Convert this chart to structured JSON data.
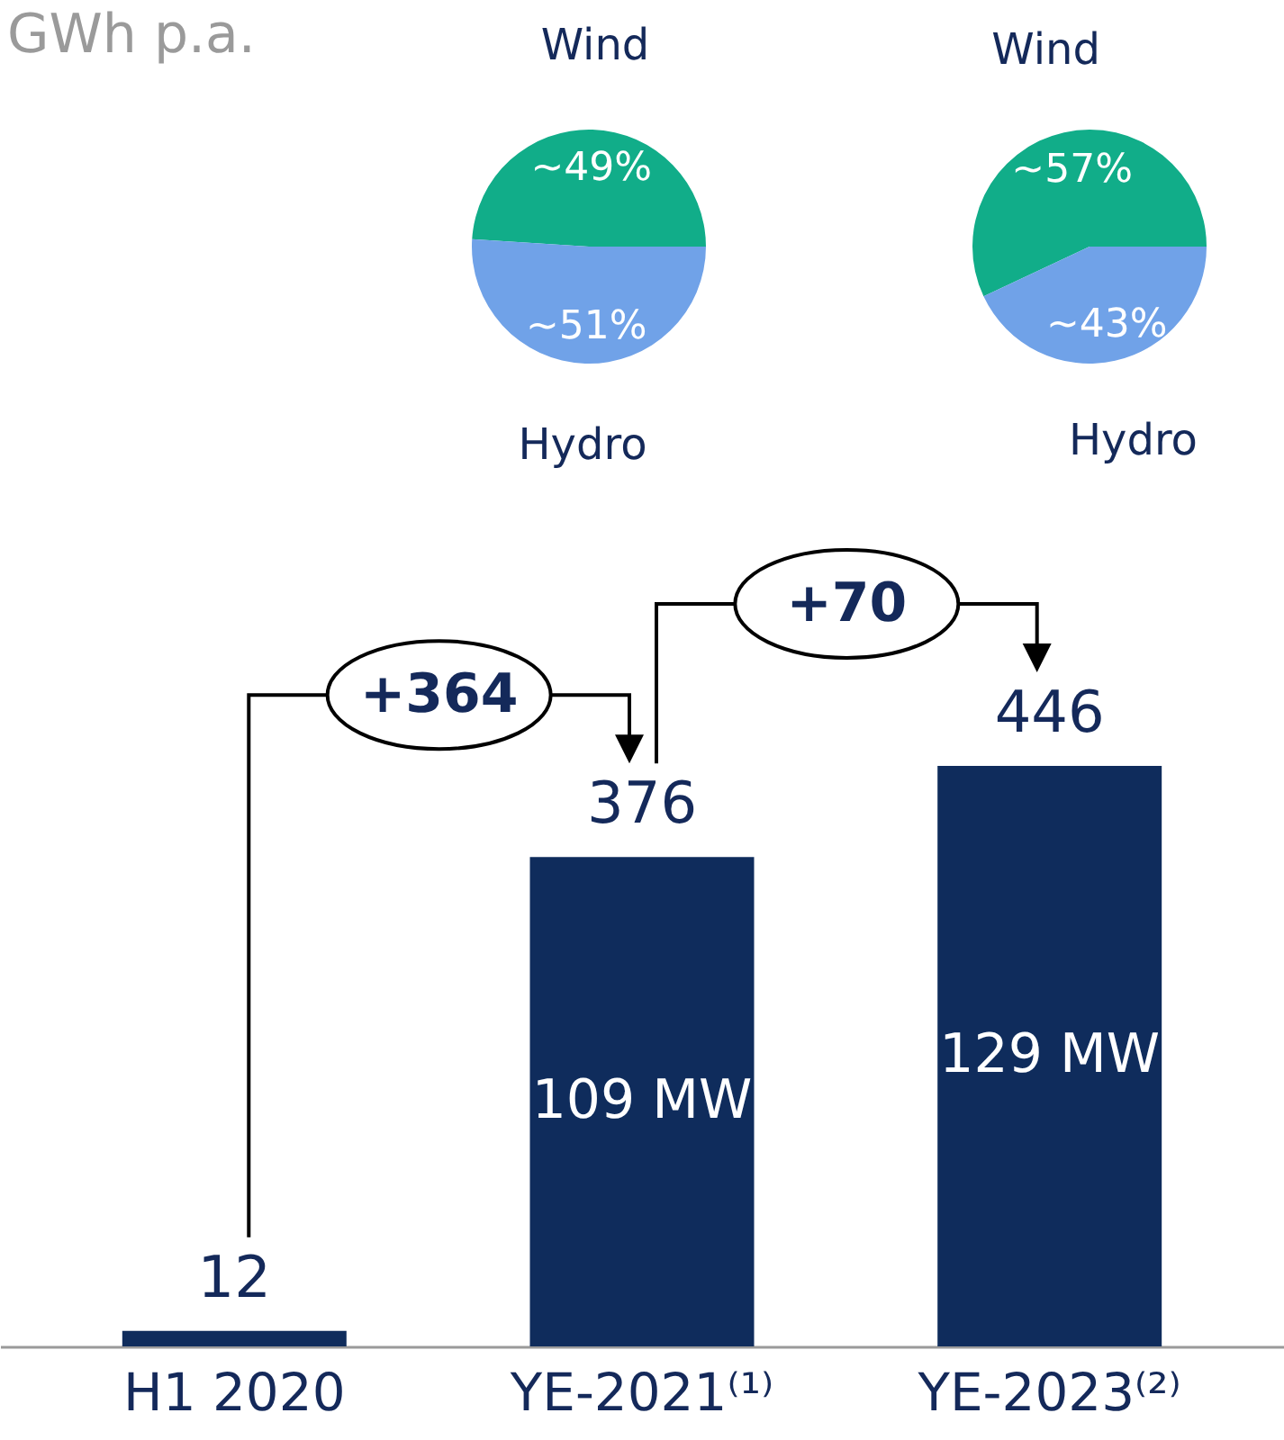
{
  "chart_data": [
    {
      "type": "pie",
      "categories": [
        "Wind",
        "Hydro"
      ],
      "values": [
        49,
        51
      ],
      "colors": [
        "#11ad89",
        "#70a2e8"
      ],
      "value_labels": [
        "~49%",
        "~51%"
      ]
    },
    {
      "type": "pie",
      "categories": [
        "Wind",
        "Hydro"
      ],
      "values": [
        57,
        43
      ],
      "colors": [
        "#11ad89",
        "#70a2e8"
      ],
      "value_labels": [
        "~57%",
        "~43%"
      ]
    },
    {
      "type": "bar",
      "title": "GWh p.a.",
      "categories": [
        "H1 2020",
        "YE-2021⁽¹⁾",
        "YE-2023⁽²⁾"
      ],
      "values": [
        12,
        376,
        446
      ],
      "color": "#0f2c5c",
      "data_labels": true,
      "annotations": [
        "+364",
        "+70",
        "109 MW",
        "129 MW"
      ]
    }
  ]
}
